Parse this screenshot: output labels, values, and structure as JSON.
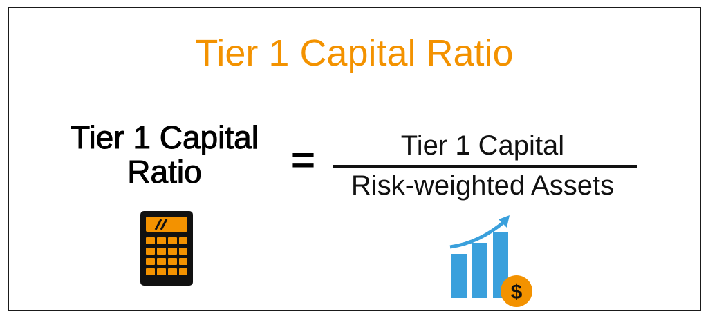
{
  "title": "Tier 1 Capital Ratio",
  "formula": {
    "lhs_line1": "Tier 1 Capital",
    "lhs_line2": "Ratio",
    "equals": "=",
    "numerator": "Tier 1 Capital",
    "denominator": "Risk-weighted Assets"
  },
  "icons": {
    "left": "calculator-icon",
    "right": "growth-chart-dollar-icon",
    "dollar_symbol": "$"
  },
  "colors": {
    "title": "#f39200",
    "accent_orange": "#f39200",
    "chart_blue": "#3aa0dc",
    "text": "#000000"
  }
}
